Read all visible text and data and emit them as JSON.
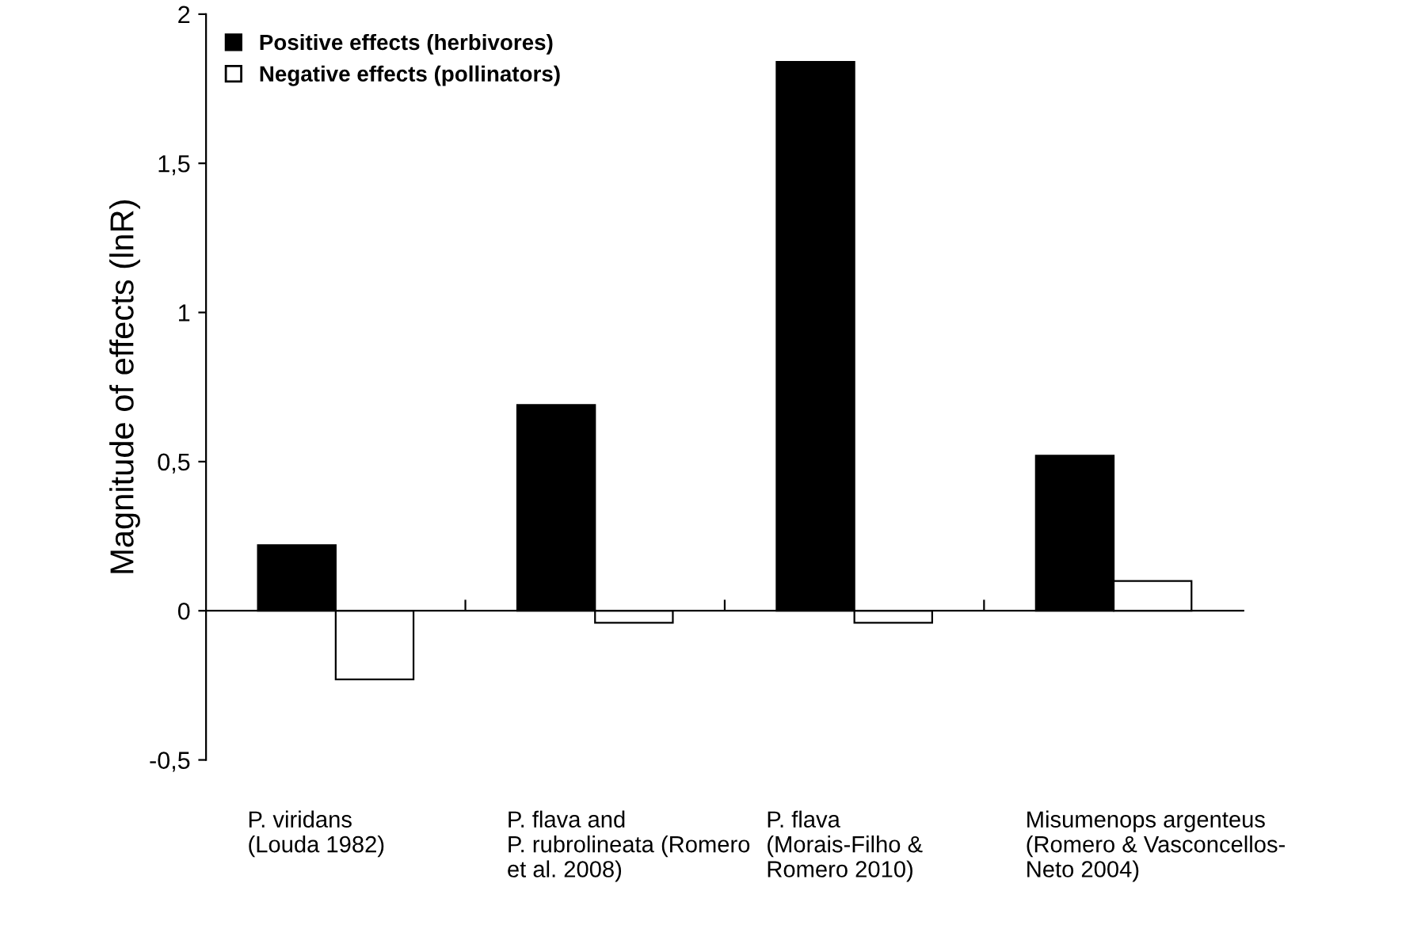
{
  "chart_data": {
    "type": "bar",
    "ylabel": "Magnitude of effects (lnR)",
    "categories": [
      "P. viridans\n(Louda 1982)",
      "P. flava and\nP. rubrolineata (Romero\net al. 2008)",
      "P. flava\n(Morais-Filho &\nRomero 2010)",
      "Misumenops argenteus\n(Romero & Vasconcellos-\nNeto 2004)"
    ],
    "series": [
      {
        "name": "Positive effects (herbivores)",
        "color": "#000000",
        "values": [
          0.22,
          0.69,
          1.84,
          0.52
        ]
      },
      {
        "name": "Negative effects (pollinators)",
        "color": "#ffffff",
        "values": [
          -0.23,
          -0.04,
          -0.04,
          0.1
        ]
      }
    ],
    "ylim": [
      -0.5,
      2
    ],
    "yticks": [
      {
        "value": -0.5,
        "label": "-0,5"
      },
      0,
      {
        "value": 0.5,
        "label": "0,5"
      },
      1,
      {
        "value": 1.5,
        "label": "1,5"
      },
      2
    ],
    "legend": "top left"
  }
}
